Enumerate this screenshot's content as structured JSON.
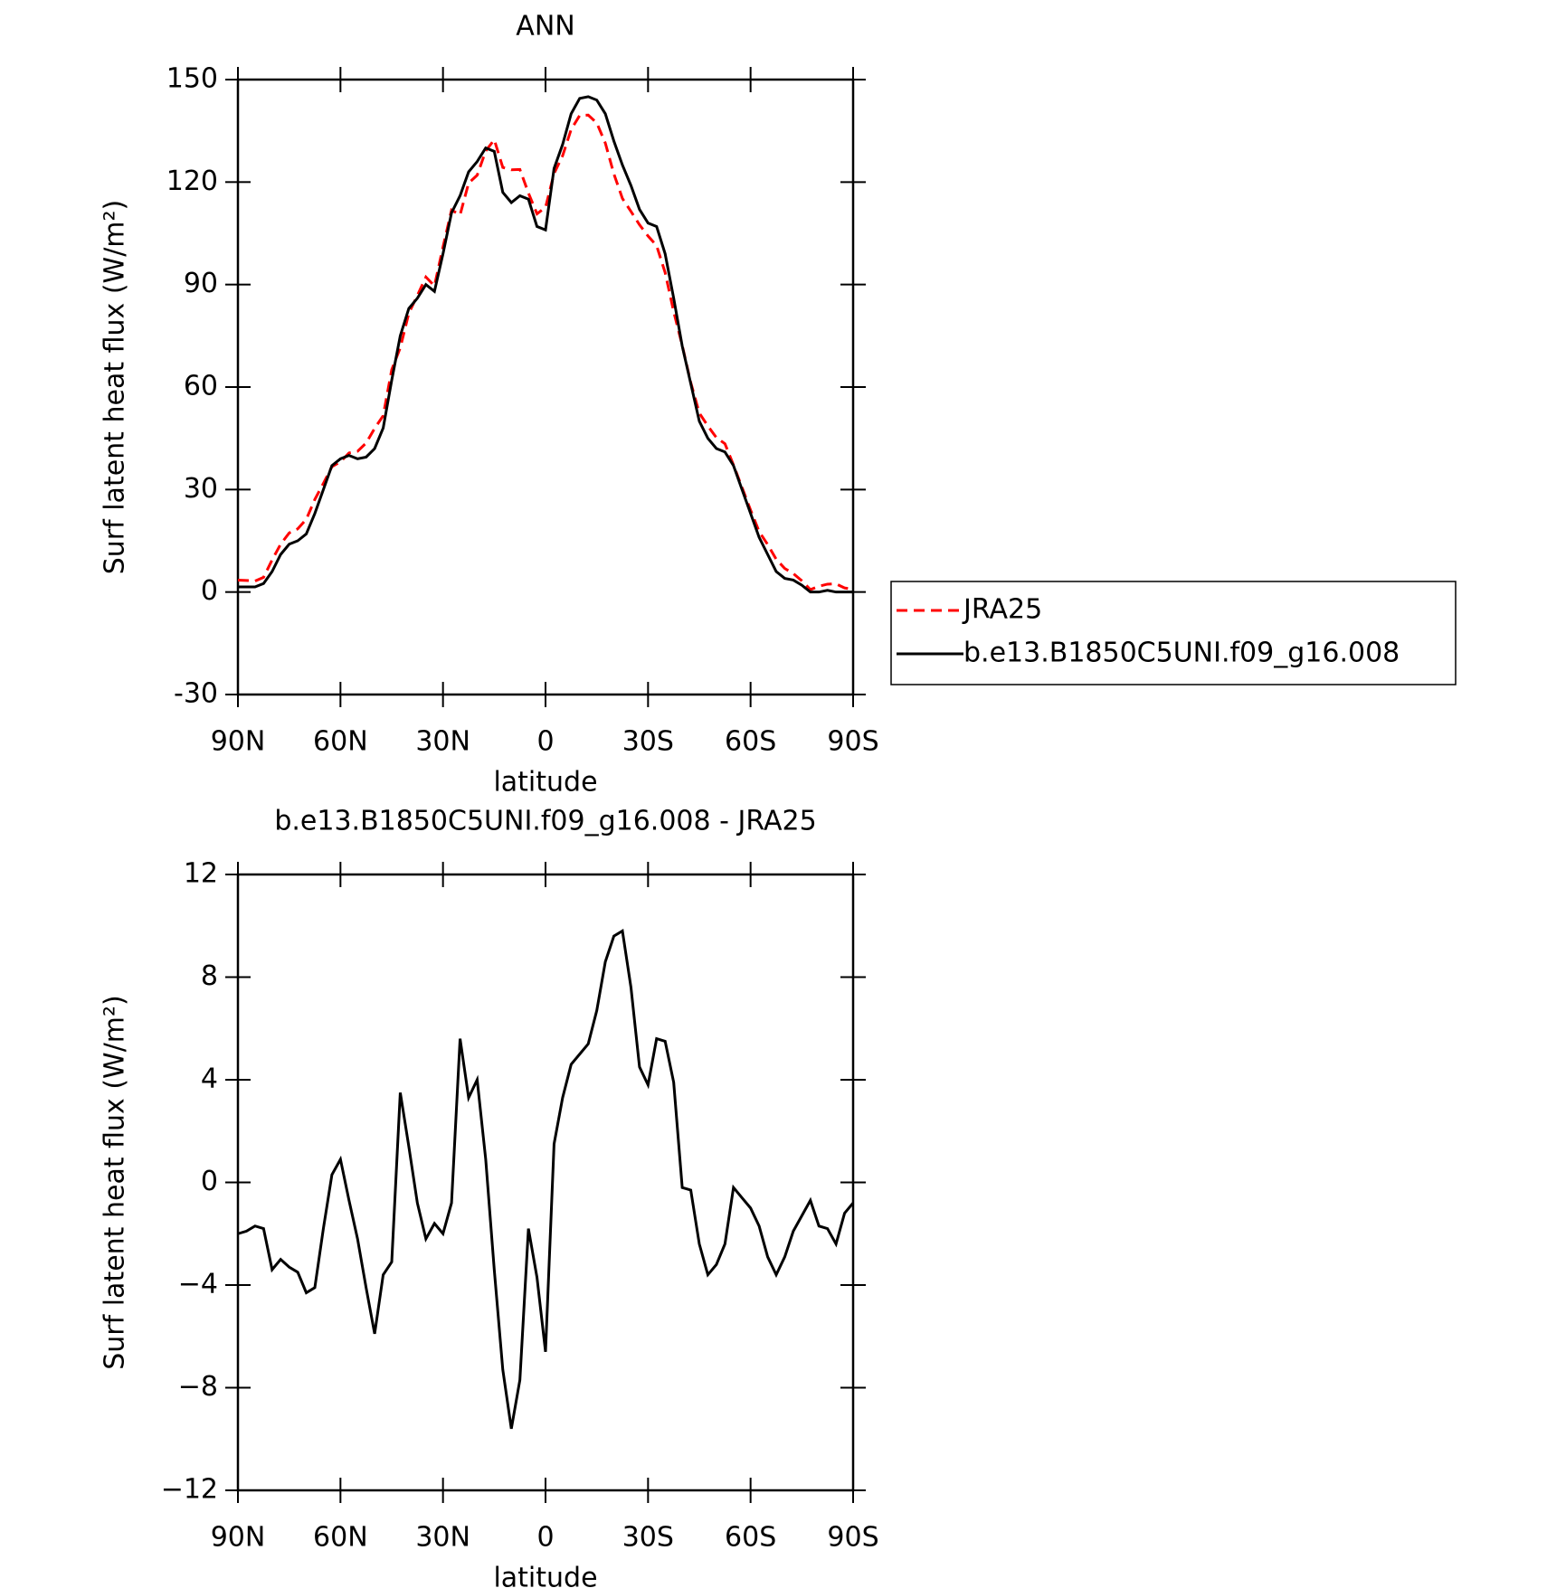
{
  "chart_data": [
    {
      "type": "line",
      "title": "ANN",
      "xlabel": "latitude",
      "ylabel": "Surf latent heat flux (W/m²)",
      "x": [
        90,
        87.5,
        85,
        82.5,
        80,
        77.5,
        75,
        72.5,
        70,
        67.5,
        65,
        62.5,
        60,
        57.5,
        55,
        52.5,
        50,
        47.5,
        45,
        42.5,
        40,
        37.5,
        35,
        32.5,
        30,
        27.5,
        25,
        22.5,
        20,
        17.5,
        15,
        12.5,
        10,
        7.5,
        5,
        2.5,
        0,
        -2.5,
        -5,
        -7.5,
        -10,
        -12.5,
        -15,
        -17.5,
        -20,
        -22.5,
        -25,
        -27.5,
        -30,
        -32.5,
        -35,
        -37.5,
        -40,
        -42.5,
        -45,
        -47.5,
        -50,
        -52.5,
        -55,
        -57.5,
        -60,
        -62.5,
        -65,
        -67.5,
        -70,
        -72.5,
        -75,
        -77.5,
        -80,
        -82.5,
        -85,
        -87.5,
        -90
      ],
      "series": [
        {
          "name": "JRA25",
          "color": "#ff0000",
          "style": "dashed",
          "values": [
            3.5,
            3.4,
            3.2,
            4.3,
            9.4,
            14,
            17.3,
            18.5,
            21.3,
            27.1,
            31.8,
            36.7,
            38.1,
            40.7,
            41.2,
            43.6,
            47.9,
            51.6,
            65.1,
            71.5,
            81.6,
            86.8,
            92.2,
            89.6,
            101,
            111.8,
            110.4,
            119.7,
            122,
            129.1,
            132.4,
            124.3,
            123.6,
            123.7,
            116.8,
            110.7,
            112.6,
            122.5,
            127.7,
            135.4,
            139.5,
            139.6,
            137.3,
            131.4,
            122.4,
            115.2,
            111.4,
            107.5,
            104.2,
            101.4,
            93.5,
            82.1,
            72.2,
            61.3,
            52.4,
            48.6,
            45.2,
            43.4,
            37.2,
            30.6,
            24,
            17.7,
            13.9,
            9.6,
            6.9,
            5.4,
            3.3,
            0.7,
            1.7,
            2.3,
            2.4,
            1.2,
            0.8
          ]
        },
        {
          "name": "b.e13.B1850C5UNI.f09_g16.008",
          "color": "#000000",
          "style": "solid",
          "values": [
            1.5,
            1.5,
            1.5,
            2.5,
            6,
            11,
            14,
            15,
            17,
            23,
            30,
            37,
            39,
            40,
            39,
            39.5,
            42,
            48,
            62,
            75,
            83,
            86,
            90,
            88,
            99,
            111,
            116,
            123,
            126,
            130,
            129,
            117,
            114,
            116,
            115,
            107,
            106,
            124,
            131,
            140,
            144.5,
            145,
            144,
            140,
            132,
            125,
            119,
            112,
            108,
            107,
            99,
            86,
            72,
            61,
            50,
            45,
            42,
            41,
            37,
            30,
            23,
            16,
            11,
            6,
            4,
            3.5,
            2,
            0,
            0,
            0.5,
            0,
            0,
            0
          ]
        }
      ],
      "xlim": [
        90,
        -90
      ],
      "xticks": [
        {
          "value": 90,
          "label": "90N"
        },
        {
          "value": 60,
          "label": "60N"
        },
        {
          "value": 30,
          "label": "30N"
        },
        0,
        {
          "value": -30,
          "label": "30S"
        },
        {
          "value": -60,
          "label": "60S"
        },
        {
          "value": -90,
          "label": "90S"
        }
      ],
      "ylim": [
        -30,
        150
      ],
      "yticks": [
        -30,
        0,
        30,
        60,
        90,
        120,
        150
      ],
      "legend": "right"
    },
    {
      "type": "line",
      "title": "b.e13.B1850C5UNI.f09_g16.008 - JRA25",
      "xlabel": "latitude",
      "ylabel": "Surf latent heat flux (W/m²)",
      "x": [
        90,
        87.5,
        85,
        82.5,
        80,
        77.5,
        75,
        72.5,
        70,
        67.5,
        65,
        62.5,
        60,
        57.5,
        55,
        52.5,
        50,
        47.5,
        45,
        42.5,
        40,
        37.5,
        35,
        32.5,
        30,
        27.5,
        25,
        22.5,
        20,
        17.5,
        15,
        12.5,
        10,
        7.5,
        5,
        2.5,
        0,
        -2.5,
        -5,
        -7.5,
        -10,
        -12.5,
        -15,
        -17.5,
        -20,
        -22.5,
        -25,
        -27.5,
        -30,
        -32.5,
        -35,
        -37.5,
        -40,
        -42.5,
        -45,
        -47.5,
        -50,
        -52.5,
        -55,
        -57.5,
        -60,
        -62.5,
        -65,
        -67.5,
        -70,
        -72.5,
        -75,
        -77.5,
        -80,
        -82.5,
        -85,
        -87.5,
        -90
      ],
      "values": [
        -2.0,
        -1.9,
        -1.7,
        -1.8,
        -3.4,
        -3.0,
        -3.3,
        -3.5,
        -4.3,
        -4.1,
        -1.8,
        0.3,
        0.9,
        -0.7,
        -2.2,
        -4.1,
        -5.9,
        -3.6,
        -3.1,
        3.5,
        1.4,
        -0.8,
        -2.2,
        -1.6,
        -2.0,
        -0.8,
        5.6,
        3.3,
        4.0,
        0.9,
        -3.4,
        -7.3,
        -9.6,
        -7.7,
        -1.8,
        -3.7,
        -6.6,
        1.5,
        3.3,
        4.6,
        5.0,
        5.4,
        6.7,
        8.6,
        9.6,
        9.8,
        7.6,
        4.5,
        3.8,
        5.6,
        5.5,
        3.9,
        -0.2,
        -0.3,
        -2.4,
        -3.6,
        -3.2,
        -2.4,
        -0.2,
        -0.6,
        -1.0,
        -1.7,
        -2.9,
        -3.6,
        -2.9,
        -1.9,
        -1.3,
        -0.7,
        -1.7,
        -1.8,
        -2.4,
        -1.2,
        -0.8
      ],
      "color": "#000000",
      "xlim": [
        90,
        -90
      ],
      "xticks": [
        {
          "value": 90,
          "label": "90N"
        },
        {
          "value": 60,
          "label": "60N"
        },
        {
          "value": 30,
          "label": "30N"
        },
        0,
        {
          "value": -30,
          "label": "30S"
        },
        {
          "value": -60,
          "label": "60S"
        },
        {
          "value": -90,
          "label": "90S"
        }
      ],
      "ylim": [
        -12,
        12
      ],
      "yticks": [
        {
          "value": -12,
          "label": "−12"
        },
        {
          "value": -8,
          "label": "−8"
        },
        {
          "value": -4,
          "label": "−4"
        },
        0,
        4,
        8,
        12
      ]
    }
  ]
}
